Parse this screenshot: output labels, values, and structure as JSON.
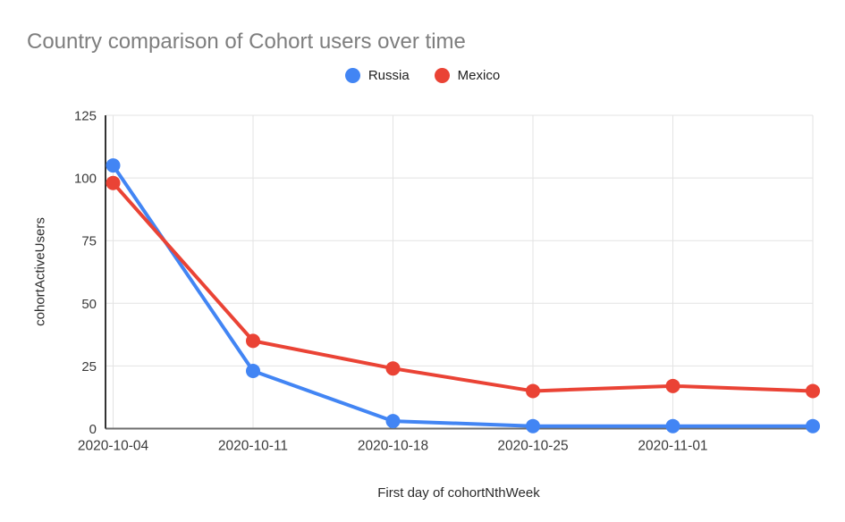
{
  "page": {
    "background": "#ffffff"
  },
  "chart_data": {
    "type": "line",
    "title": "Country comparison of Cohort users over time",
    "xlabel": "First day of cohortNthWeek",
    "ylabel": "cohortActiveUsers",
    "categories": [
      "2020-10-04",
      "2020-10-11",
      "2020-10-18",
      "2020-10-25",
      "2020-11-01",
      ""
    ],
    "series": [
      {
        "name": "Russia",
        "color": "#4285F4",
        "values": [
          105,
          23,
          3,
          1,
          1,
          1
        ]
      },
      {
        "name": "Mexico",
        "color": "#EA4335",
        "values": [
          98,
          35,
          24,
          15,
          17,
          15
        ]
      }
    ],
    "ylim": [
      0,
      125
    ],
    "yticks": [
      0,
      25,
      50,
      75,
      100,
      125
    ],
    "grid": true,
    "legend_position": "top",
    "colors": {
      "title_text": "#7e7e7e",
      "tick_text": "#3a3a3a",
      "gridline": "#e3e3e3",
      "x_baseline": "#6e6e6e",
      "y_axis_line": "#333333"
    }
  }
}
